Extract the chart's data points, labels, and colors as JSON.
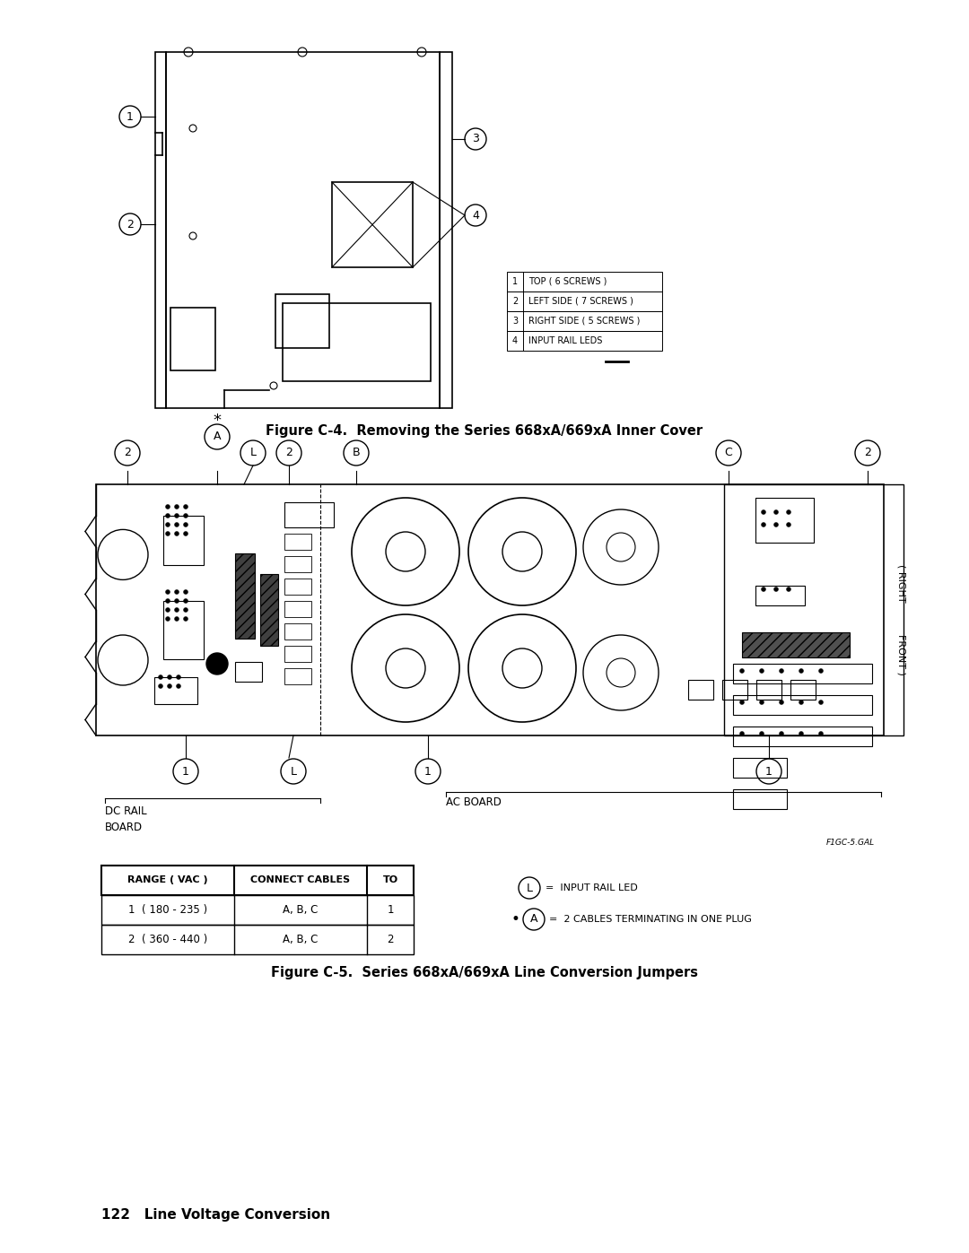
{
  "page_width": 10.8,
  "page_height": 13.97,
  "bg_color": "#ffffff",
  "figure_c4_caption": "Figure C-4.  Removing the Series 668xA/669xA Inner Cover",
  "figure_c5_caption": "Figure C-5.  Series 668xA/669xA Line Conversion Jumpers",
  "footer_text": "122   Line Voltage Conversion",
  "legend_table_rows": [
    [
      "1",
      "TOP ( 6 SCREWS )"
    ],
    [
      "2",
      "LEFT SIDE ( 7 SCREWS )"
    ],
    [
      "3",
      "RIGHT SIDE ( 5 SCREWS )"
    ],
    [
      "4",
      "INPUT RAIL LEDS"
    ]
  ],
  "jumper_table_headers": [
    "RANGE ( VAC )",
    "CONNECT CABLES",
    "TO"
  ],
  "jumper_table_rows": [
    [
      "1  ( 180 - 235 )",
      "A, B, C",
      "1"
    ],
    [
      "2  ( 360 - 440 )",
      "A, B, C",
      "2"
    ]
  ]
}
